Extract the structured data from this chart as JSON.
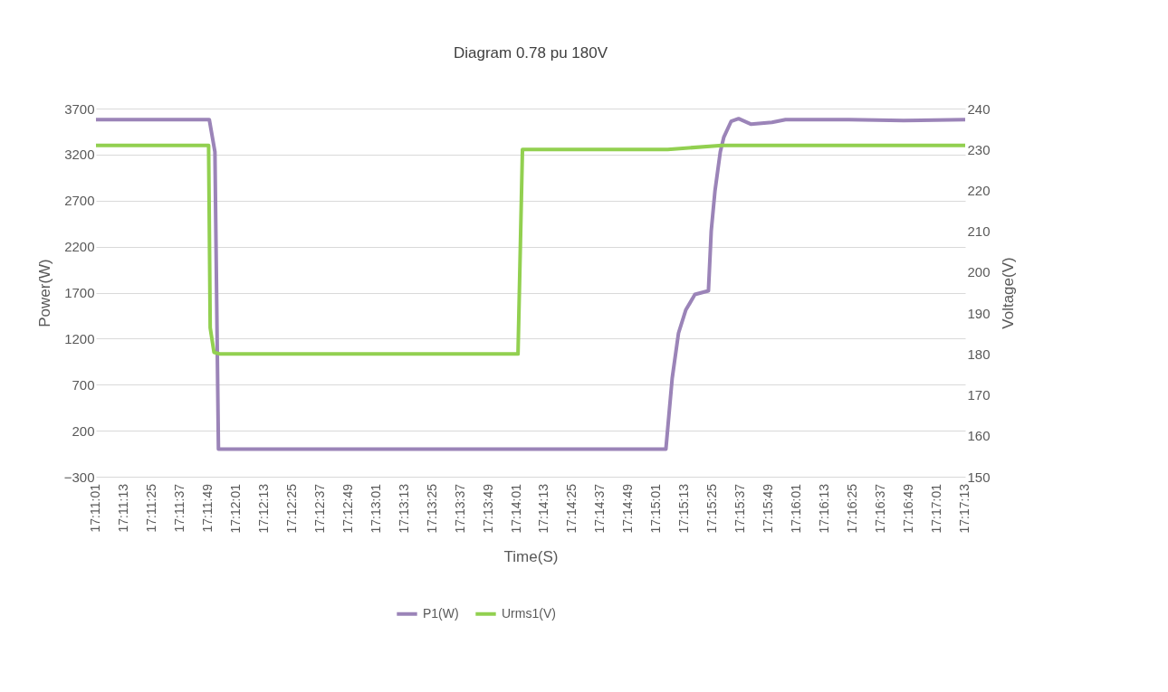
{
  "chart_data": {
    "type": "line",
    "title": "Diagram 0.78 pu 180V",
    "xlabel": "Time(S)",
    "ylabel": "Power(W)",
    "y2label": "Voltage(V)",
    "xlim": [
      17.18361,
      17.28694
    ],
    "xticks": [
      {
        "value": 17.18361,
        "label": "17:11:01"
      },
      {
        "value": 17.18694,
        "label": "17:11:13"
      },
      {
        "value": 17.19028,
        "label": "17:11:25"
      },
      {
        "value": 17.19361,
        "label": "17:11:37"
      },
      {
        "value": 17.19694,
        "label": "17:11:49"
      },
      {
        "value": 17.20028,
        "label": "17:12:01"
      },
      {
        "value": 17.20361,
        "label": "17:12:13"
      },
      {
        "value": 17.20694,
        "label": "17:12:25"
      },
      {
        "value": 17.21028,
        "label": "17:12:37"
      },
      {
        "value": 17.21361,
        "label": "17:12:49"
      },
      {
        "value": 17.21694,
        "label": "17:13:01"
      },
      {
        "value": 17.22028,
        "label": "17:13:13"
      },
      {
        "value": 17.22361,
        "label": "17:13:25"
      },
      {
        "value": 17.22694,
        "label": "17:13:37"
      },
      {
        "value": 17.23028,
        "label": "17:13:49"
      },
      {
        "value": 17.23361,
        "label": "17:14:01"
      },
      {
        "value": 17.23694,
        "label": "17:14:13"
      },
      {
        "value": 17.24028,
        "label": "17:14:25"
      },
      {
        "value": 17.24361,
        "label": "17:14:37"
      },
      {
        "value": 17.24694,
        "label": "17:14:49"
      },
      {
        "value": 17.25028,
        "label": "17:15:01"
      },
      {
        "value": 17.25361,
        "label": "17:15:13"
      },
      {
        "value": 17.25694,
        "label": "17:15:25"
      },
      {
        "value": 17.26028,
        "label": "17:15:37"
      },
      {
        "value": 17.26361,
        "label": "17:15:49"
      },
      {
        "value": 17.26694,
        "label": "17:16:01"
      },
      {
        "value": 17.27028,
        "label": "17:16:13"
      },
      {
        "value": 17.27361,
        "label": "17:16:25"
      },
      {
        "value": 17.27694,
        "label": "17:16:37"
      },
      {
        "value": 17.28028,
        "label": "17:16:49"
      },
      {
        "value": 17.28361,
        "label": "17:17:01"
      },
      {
        "value": 17.28694,
        "label": "17:17:13"
      }
    ],
    "ylim": [
      -300,
      3700
    ],
    "yticks": [
      -300,
      200,
      700,
      1200,
      1700,
      2200,
      2700,
      3200,
      3700
    ],
    "y2lim": [
      150,
      240
    ],
    "y2ticks": [
      150,
      160,
      170,
      180,
      190,
      200,
      210,
      220,
      230,
      240
    ],
    "grid": "y",
    "legend": "bottom",
    "line_style": "solid",
    "marker": "none",
    "series": [
      {
        "name": "P1(W)",
        "color": "#9b84b8",
        "x": [
          17.18361,
          17.19008,
          17.19708,
          17.19775,
          17.19817,
          17.21922,
          17.25136,
          17.25211,
          17.25286,
          17.25372,
          17.25481,
          17.25642,
          17.25675,
          17.25719,
          17.25783,
          17.25825,
          17.25911,
          17.26,
          17.2615,
          17.26397,
          17.26558,
          17.27314,
          17.27961,
          17.28694
        ],
        "values": [
          3580,
          3580,
          3580,
          3230,
          0,
          0,
          0,
          770,
          1260,
          1510,
          1680,
          1720,
          2370,
          2800,
          3230,
          3390,
          3560,
          3590,
          3530,
          3550,
          3580,
          3580,
          3570,
          3580
        ]
      },
      {
        "name": "Urms1(V)",
        "color": "#92d050",
        "axis": "y2",
        "x": [
          17.18361,
          17.19008,
          17.197,
          17.19719,
          17.19764,
          17.19839,
          17.21922,
          17.23378,
          17.23431,
          17.25158,
          17.25806,
          17.27314,
          17.28694
        ],
        "values": [
          231,
          231,
          231,
          186.4,
          180.4,
          180,
          180,
          180,
          230,
          230,
          231,
          231,
          231
        ]
      }
    ]
  }
}
